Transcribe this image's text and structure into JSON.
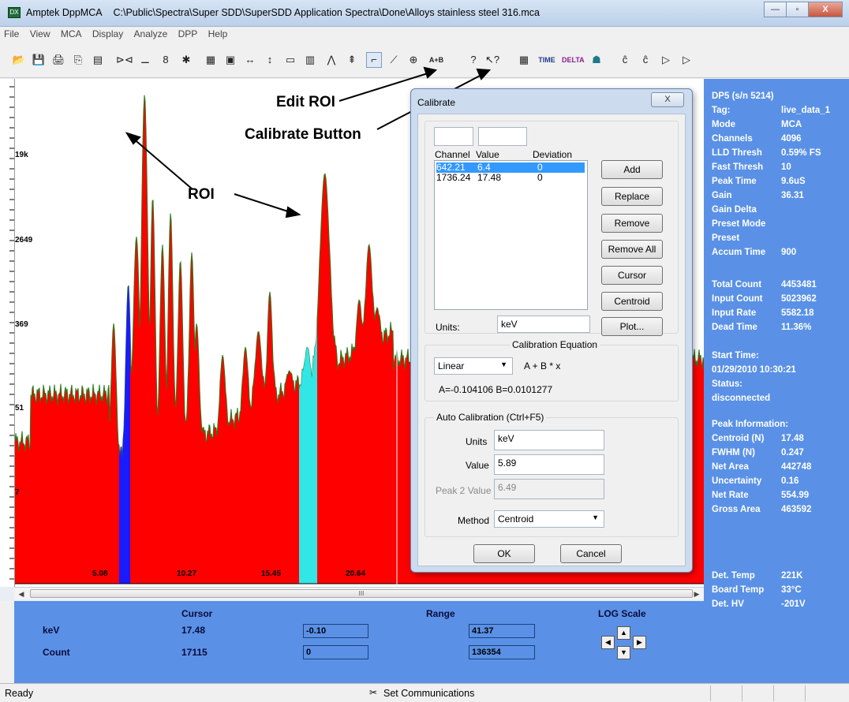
{
  "window": {
    "app_name": "Amptek DppMCA",
    "file_path": "C:\\Public\\Spectra\\Super SDD\\SuperSDD Application Spectra\\Done\\Alloys stainless steel 316.mca",
    "icon_text": "DX",
    "minimize_glyph": "—",
    "maximize_glyph": "▫",
    "close_glyph": "X"
  },
  "menu": [
    "File",
    "View",
    "MCA",
    "Display",
    "Analyze",
    "DPP",
    "Help"
  ],
  "toolbar": {
    "glyphs": [
      "📂",
      "💾",
      "🖨",
      "⎘",
      "▤",
      "⊳⊲",
      "⚊",
      "8",
      "✱",
      "▦",
      "▣",
      "↔",
      "↕",
      "▭",
      "▥",
      "⋀",
      "⇞",
      "⌐",
      "⟋",
      "⊕",
      "A+B",
      "?",
      "↖?",
      "▦",
      "TIME",
      "DELTA",
      "☗",
      "ĉ",
      "ĉ",
      "▷",
      "▷"
    ]
  },
  "spectrum": {
    "y_ticks": [
      "19k",
      "2649",
      "369",
      "51",
      "7"
    ],
    "x_ticks": [
      "5.08",
      "10.27",
      "15.45",
      "20.64"
    ],
    "scroll_left": "◀",
    "scroll_right": "▶",
    "scroll_grip": "III",
    "fill_color": "#ff0000",
    "roi1_color": "#1a1aff",
    "roi2_color": "#33e6e6",
    "peaks_kev": [
      4.5,
      5.4,
      5.9,
      6.4,
      6.9,
      7.5,
      8.0,
      8.6,
      9.3,
      9.6,
      11.2,
      12.6,
      13.4,
      14.1,
      15.3,
      16.4,
      17.48,
      19.6,
      20.2,
      20.7
    ]
  },
  "annotations": {
    "edit_roi": "Edit ROI",
    "calibrate_button": "Calibrate Button",
    "roi": "ROI"
  },
  "dialog": {
    "title": "Calibrate",
    "close": "X",
    "col_channel": "Channel",
    "col_value": "Value",
    "col_deviation": "Deviation",
    "rows": [
      {
        "channel": "642.21",
        "value": "6.4",
        "deviation": "0",
        "selected": true
      },
      {
        "channel": "1736.24",
        "value": "17.48",
        "deviation": "0",
        "selected": false
      }
    ],
    "buttons": [
      "Add",
      "Replace",
      "Remove",
      "Remove All",
      "Cursor",
      "Centroid",
      "Plot..."
    ],
    "units_label": "Units:",
    "units_value": "keV",
    "equation_group": "Calibration Equation",
    "equation_type": "Linear",
    "equation_formula": "A + B * x",
    "equation_coeffs": "A=-0.104106  B=0.0101277",
    "auto_group": "Auto Calibration (Ctrl+F5)",
    "auto_units_label": "Units",
    "auto_units_value": "keV",
    "auto_value_label": "Value",
    "auto_value": "5.89",
    "peak2_label": "Peak 2 Value",
    "peak2_value": "6.49",
    "method_label": "Method",
    "method_value": "Centroid",
    "ok": "OK",
    "cancel": "Cancel",
    "dropdown_glyph": "▼"
  },
  "info": {
    "device": "DP5 (s/n   5214)",
    "rows": [
      {
        "k": "Tag:",
        "v": "live_data_1"
      },
      {
        "k": "Mode",
        "v": "MCA"
      },
      {
        "k": "Channels",
        "v": "4096"
      },
      {
        "k": "LLD Thresh",
        "v": "0.59% FS"
      },
      {
        "k": "Fast Thresh",
        "v": "10"
      },
      {
        "k": "Peak Time",
        "v": "9.6uS"
      },
      {
        "k": "Gain",
        "v": "36.31"
      },
      {
        "k": "Gain Delta",
        "v": ""
      },
      {
        "k": "Preset Mode",
        "v": ""
      },
      {
        "k": "Preset",
        "v": ""
      },
      {
        "k": "Accum Time",
        "v": "900"
      }
    ],
    "counts": [
      {
        "k": "Total Count",
        "v": "4453481"
      },
      {
        "k": "Input Count",
        "v": "5023962"
      },
      {
        "k": "Input Rate",
        "v": "5582.18"
      },
      {
        "k": "Dead Time",
        "v": "11.36%"
      }
    ],
    "start_time_label": "Start Time:",
    "start_time": "01/29/2010 10:30:21",
    "status_label": "Status:",
    "status": "disconnected",
    "peak_header": "Peak Information:",
    "peak": [
      {
        "k": "Centroid (N)",
        "v": "17.48"
      },
      {
        "k": "FWHM (N)",
        "v": "0.247"
      },
      {
        "k": "Net Area",
        "v": "442748"
      },
      {
        "k": "Uncertainty",
        "v": "0.16"
      },
      {
        "k": "Net Rate",
        "v": "554.99"
      },
      {
        "k": "Gross Area",
        "v": "463592"
      }
    ],
    "temps": [
      {
        "k": "Det. Temp",
        "v": "221K"
      },
      {
        "k": "Board Temp",
        "v": "33°C"
      },
      {
        "k": "Det. HV",
        "v": "-201V"
      }
    ]
  },
  "bottom": {
    "cursor_header": "Cursor",
    "range_header": "Range",
    "log_header": "LOG Scale",
    "kev_label": "keV",
    "count_label": "Count",
    "cursor_kev": "17.48",
    "cursor_count": "17115",
    "range_kev_min": "-0.10",
    "range_kev_max": "41.37",
    "range_count_min": "0",
    "range_count_max": "136354",
    "arrow_up": "▲",
    "arrow_down": "▼",
    "arrow_left": "◀",
    "arrow_right": "▶"
  },
  "status": {
    "ready": "Ready",
    "comm_icon": "✂",
    "comm": "Set Communications"
  }
}
